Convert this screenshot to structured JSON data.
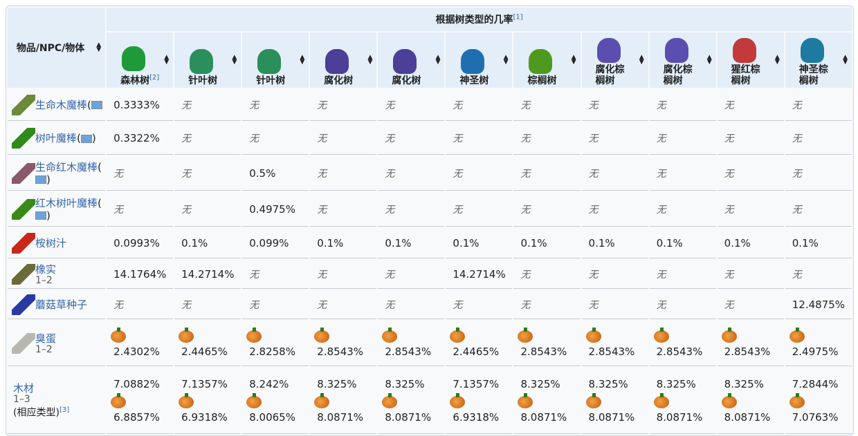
{
  "header": {
    "first_col": "物品/NPC/物体",
    "group": "根据树类型的几率",
    "group_ref": "[1]",
    "trees": [
      {
        "name": "森林树",
        "ref": "[2]",
        "color": "#1e9a3a"
      },
      {
        "name": "针叶树",
        "color": "#2a8f5a"
      },
      {
        "name": "针叶树",
        "color": "#2a8f5a"
      },
      {
        "name": "腐化树",
        "color": "#4b3f99"
      },
      {
        "name": "腐化树",
        "color": "#4b3f99"
      },
      {
        "name": "神圣树",
        "color": "#1f6fb0"
      },
      {
        "name": "棕榈树",
        "color": "#4e9a1e"
      },
      {
        "name": "腐化棕榈树",
        "color": "#5a4fb0"
      },
      {
        "name": "腐化棕榈树",
        "color": "#5a4fb0"
      },
      {
        "name": "猩红棕榈树",
        "color": "#c23a3a"
      },
      {
        "name": "神圣棕榈树",
        "color": "#1e7aa0"
      }
    ]
  },
  "none": "无",
  "rows": [
    {
      "name": "生命木魔棒",
      "platform": "(",
      "platform_close": "",
      "icon_color": "#6b8a3a",
      "cells": [
        "0.3333%",
        "无",
        "无",
        "无",
        "无",
        "无",
        "无",
        "无",
        "无",
        "无",
        "无"
      ]
    },
    {
      "name": "树叶魔棒",
      "platform": "(",
      "platform_close": ")",
      "icon_color": "#2f8a1a",
      "cells": [
        "0.3322%",
        "无",
        "无",
        "无",
        "无",
        "无",
        "无",
        "无",
        "无",
        "无",
        "无"
      ]
    },
    {
      "name": "生命红木魔棒",
      "platform": "(",
      "platform_close": ")",
      "icon_color": "#8a5a6a",
      "cells": [
        "无",
        "无",
        "0.5%",
        "无",
        "无",
        "无",
        "无",
        "无",
        "无",
        "无",
        "无"
      ]
    },
    {
      "name": "红木树叶魔棒",
      "platform": "(",
      "platform_close": ")",
      "icon_color": "#3a8a1a",
      "cells": [
        "无",
        "无",
        "0.4975%",
        "无",
        "无",
        "无",
        "无",
        "无",
        "无",
        "无",
        "无"
      ]
    },
    {
      "name": "桉树汁",
      "icon_color": "#c8281a",
      "cells": [
        "0.0993%",
        "0.1%",
        "0.099%",
        "0.1%",
        "0.1%",
        "0.1%",
        "0.1%",
        "0.1%",
        "0.1%",
        "0.1%",
        "0.1%"
      ]
    },
    {
      "name": "橡实",
      "qty": "1–2",
      "icon_color": "#6b6a3a",
      "cells": [
        "14.1764%",
        "14.2714%",
        "无",
        "无",
        "无",
        "14.2714%",
        "无",
        "无",
        "无",
        "无",
        "无"
      ]
    },
    {
      "name": "蘑菇草种子",
      "icon_color": "#2a3aa0",
      "cells": [
        "无",
        "无",
        "无",
        "无",
        "无",
        "无",
        "无",
        "无",
        "无",
        "无",
        "12.4875%"
      ]
    },
    {
      "name": "臭蛋",
      "qty": "1–2",
      "icon_color": "#b8b8b0",
      "halloween": true,
      "cells": [
        "2.4302%",
        "2.4465%",
        "2.8258%",
        "2.8543%",
        "2.8543%",
        "2.4465%",
        "2.8543%",
        "2.8543%",
        "2.8543%",
        "2.8543%",
        "2.4975%"
      ]
    }
  ],
  "wood": {
    "name": "木材",
    "qty": "1–3",
    "note": "(相应类型)",
    "ref": "[3]",
    "normal": [
      "7.0882%",
      "7.1357%",
      "8.242%",
      "8.325%",
      "8.325%",
      "7.1357%",
      "8.325%",
      "8.325%",
      "8.325%",
      "8.325%",
      "7.2844%"
    ],
    "halloween": [
      "6.8857%",
      "6.9318%",
      "8.0065%",
      "8.0871%",
      "8.0871%",
      "6.9318%",
      "8.0871%",
      "8.0871%",
      "8.0871%",
      "8.0871%",
      "7.0763%"
    ]
  }
}
